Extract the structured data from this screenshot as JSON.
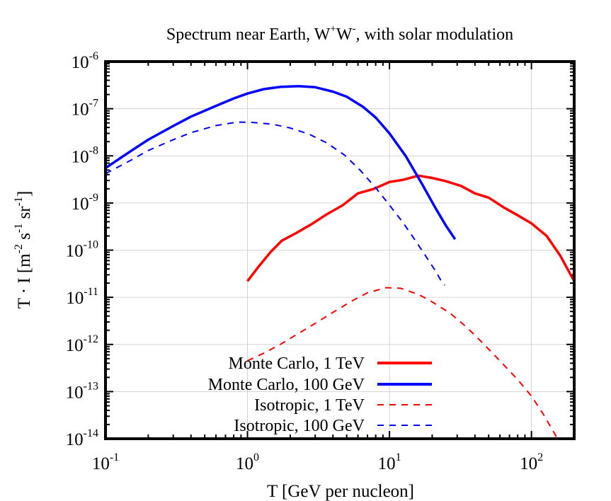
{
  "chart_data": {
    "type": "line",
    "title": {
      "main": "Spectrum near Earth, W",
      "sup1": "+",
      "mid": "W",
      "sup2": "-",
      "rest": ", with solar modulation"
    },
    "xlabel": "T [GeV per nucleon]",
    "ylabel": {
      "pre": "T · I [m",
      "e1": "-2",
      "mid1": " s",
      "e2": "-1",
      "mid2": " sr",
      "e3": "-1",
      "post": "]"
    },
    "xscale": "log",
    "yscale": "log",
    "xlim": [
      0.1,
      200
    ],
    "ylim": [
      1e-14,
      1e-06
    ],
    "grid": true,
    "x_ticks": [
      {
        "base": "10",
        "exp": "-1",
        "value": 0.1
      },
      {
        "base": "10",
        "exp": "0",
        "value": 1
      },
      {
        "base": "10",
        "exp": "1",
        "value": 10
      },
      {
        "base": "10",
        "exp": "2",
        "value": 100
      }
    ],
    "y_ticks": [
      {
        "base": "10",
        "exp": "-6",
        "value": 1e-06
      },
      {
        "base": "10",
        "exp": "-7",
        "value": 1e-07
      },
      {
        "base": "10",
        "exp": "-8",
        "value": 1e-08
      },
      {
        "base": "10",
        "exp": "-9",
        "value": 1e-09
      },
      {
        "base": "10",
        "exp": "-10",
        "value": 1e-10
      },
      {
        "base": "10",
        "exp": "-11",
        "value": 1e-11
      },
      {
        "base": "10",
        "exp": "-12",
        "value": 1e-12
      },
      {
        "base": "10",
        "exp": "-13",
        "value": 1e-13
      },
      {
        "base": "10",
        "exp": "-14",
        "value": 1e-14
      }
    ],
    "legend_position": "bottom-center",
    "series": [
      {
        "name": "Monte Carlo, 1 TeV",
        "color": "#ff0000",
        "style": "solid",
        "x": [
          1.0,
          1.2,
          1.45,
          1.75,
          2.2,
          2.8,
          3.6,
          4.7,
          6.0,
          7.8,
          10.0,
          12.5,
          16.0,
          20.0,
          25.0,
          32.0,
          40.0,
          50.0,
          64.0,
          80.0,
          100.0,
          128.0,
          160.0,
          200.0
        ],
        "y": [
          2.2e-11,
          4.5e-11,
          9e-11,
          1.6e-10,
          2.3e-10,
          3.5e-10,
          5.7e-10,
          9e-10,
          1.6e-09,
          2e-09,
          2.8e-09,
          3.1e-09,
          3.8e-09,
          3.4e-09,
          2.9e-09,
          2.3e-09,
          1.6e-09,
          1.3e-09,
          8e-10,
          5.5e-10,
          3.7e-10,
          2e-10,
          7.5e-11,
          2.2e-11
        ]
      },
      {
        "name": "Monte Carlo, 100 GeV",
        "color": "#0000ff",
        "style": "solid",
        "x": [
          0.1,
          0.15,
          0.2,
          0.3,
          0.4,
          0.6,
          0.8,
          1.0,
          1.3,
          1.7,
          2.3,
          3.0,
          4.0,
          5.0,
          6.5,
          8.0,
          10.0,
          13.0,
          17.0,
          21.0,
          25.0,
          29.0
        ],
        "y": [
          5.5e-09,
          1.25e-08,
          2.2e-08,
          4.3e-08,
          6.8e-08,
          1.15e-07,
          1.65e-07,
          2.1e-07,
          2.6e-07,
          2.9e-07,
          3e-07,
          2.85e-07,
          2.3e-07,
          1.8e-07,
          1.1e-07,
          6.5e-08,
          3e-08,
          1e-08,
          2.5e-09,
          8e-10,
          3.3e-10,
          1.7e-10
        ]
      },
      {
        "name": "Isotropic, 1 TeV",
        "color": "#ff0000",
        "style": "dashed",
        "x": [
          1.0,
          1.3,
          1.7,
          2.2,
          3.0,
          4.0,
          5.5,
          7.0,
          9.5,
          12.0,
          16.0,
          20.0,
          27.0,
          35.0,
          45.0,
          60.0,
          80.0,
          100.0,
          120.0,
          150.0
        ],
        "y": [
          4.5e-13,
          6.5e-13,
          1e-12,
          1.6e-12,
          2.8e-12,
          4.8e-12,
          8.5e-12,
          1.25e-11,
          1.6e-11,
          1.55e-11,
          1.15e-11,
          8e-12,
          4.5e-12,
          2.3e-12,
          1.1e-12,
          4.5e-13,
          1.8e-13,
          8e-14,
          3.5e-14,
          1.1e-14
        ]
      },
      {
        "name": "Isotropic, 100 GeV",
        "color": "#0000ff",
        "style": "dashed",
        "x": [
          0.1,
          0.15,
          0.2,
          0.3,
          0.4,
          0.6,
          0.85,
          1.1,
          1.5,
          2.0,
          2.7,
          3.6,
          4.8,
          6.2,
          8.0,
          10.0,
          12.5,
          15.0,
          18.0,
          21.0,
          23.0,
          24.5
        ],
        "y": [
          4.2e-09,
          8e-09,
          1.3e-08,
          2.2e-08,
          3.1e-08,
          4.4e-08,
          5.2e-08,
          5.1e-08,
          4.7e-08,
          3.9e-08,
          2.9e-08,
          1.9e-08,
          1.05e-08,
          5e-09,
          2.1e-09,
          9e-10,
          3.8e-10,
          1.7e-10,
          7.5e-11,
          3.7e-11,
          2.3e-11,
          1.8e-11
        ]
      }
    ]
  }
}
